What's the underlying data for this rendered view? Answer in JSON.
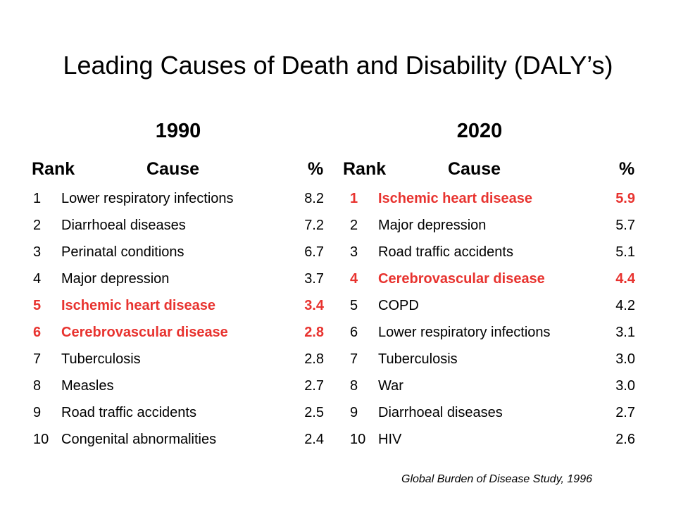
{
  "title": "Leading Causes of Death and Disability (DALY’s)",
  "accent_color": "#e8332f",
  "tables": [
    {
      "year": "1990",
      "headers": {
        "rank": "Rank",
        "cause": "Cause",
        "pct": "%"
      },
      "rows": [
        {
          "rank": "1",
          "cause": "Lower respiratory infections",
          "pct": "8.2",
          "highlight": false
        },
        {
          "rank": "2",
          "cause": "Diarrhoeal diseases",
          "pct": "7.2",
          "highlight": false
        },
        {
          "rank": "3",
          "cause": "Perinatal conditions",
          "pct": "6.7",
          "highlight": false
        },
        {
          "rank": "4",
          "cause": "Major depression",
          "pct": "3.7",
          "highlight": false
        },
        {
          "rank": "5",
          "cause": "Ischemic heart disease",
          "pct": "3.4",
          "highlight": true
        },
        {
          "rank": "6",
          "cause": "Cerebrovascular disease",
          "pct": "2.8",
          "highlight": true
        },
        {
          "rank": "7",
          "cause": "Tuberculosis",
          "pct": "2.8",
          "highlight": false
        },
        {
          "rank": "8",
          "cause": "Measles",
          "pct": "2.7",
          "highlight": false
        },
        {
          "rank": "9",
          "cause": "Road traffic accidents",
          "pct": "2.5",
          "highlight": false
        },
        {
          "rank": "10",
          "cause": "Congenital abnormalities",
          "pct": "2.4",
          "highlight": false
        }
      ]
    },
    {
      "year": "2020",
      "headers": {
        "rank": "Rank",
        "cause": "Cause",
        "pct": "%"
      },
      "rows": [
        {
          "rank": "1",
          "cause": "Ischemic heart disease",
          "pct": "5.9",
          "highlight": true
        },
        {
          "rank": "2",
          "cause": "Major depression",
          "pct": "5.7",
          "highlight": false
        },
        {
          "rank": "3",
          "cause": "Road traffic accidents",
          "pct": "5.1",
          "highlight": false
        },
        {
          "rank": "4",
          "cause": "Cerebrovascular disease",
          "pct": "4.4",
          "highlight": true
        },
        {
          "rank": "5",
          "cause": "COPD",
          "pct": "4.2",
          "highlight": false
        },
        {
          "rank": "6",
          "cause": "Lower respiratory infections",
          "pct": "3.1",
          "highlight": false
        },
        {
          "rank": "7",
          "cause": "Tuberculosis",
          "pct": "3.0",
          "highlight": false
        },
        {
          "rank": "8",
          "cause": "War",
          "pct": "3.0",
          "highlight": false
        },
        {
          "rank": "9",
          "cause": "Diarrhoeal diseases",
          "pct": "2.7",
          "highlight": false
        },
        {
          "rank": "10",
          "cause": "HIV",
          "pct": "2.6",
          "highlight": false
        }
      ]
    }
  ],
  "source": "Global Burden of Disease Study, 1996"
}
